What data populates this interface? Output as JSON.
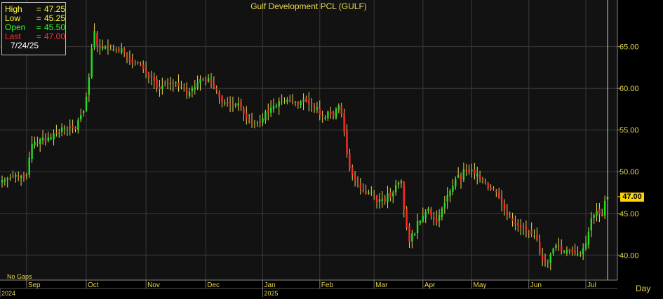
{
  "title": "Gulf Development PCL (GULF)",
  "ohlc_box": {
    "rows": [
      {
        "label": "High",
        "value": "47.25",
        "color": "#ffff3a"
      },
      {
        "label": "Low",
        "value": "45.25",
        "color": "#ffff3a"
      },
      {
        "label": "Open",
        "value": "45.50",
        "color": "#2aff2a"
      },
      {
        "label": "Last",
        "value": "47.00",
        "color": "#ff3030"
      }
    ],
    "date": "7/24/25"
  },
  "no_gaps_label": "No Gaps",
  "period_label": "Day",
  "last_price_tag": "47.00",
  "chart_data": {
    "type": "candlestick",
    "ylim": [
      37.0,
      70.6
    ],
    "y_ticks": [
      {
        "value": 40,
        "label": "40.00"
      },
      {
        "value": 45,
        "label": "45.00"
      },
      {
        "value": 50,
        "label": "50.00"
      },
      {
        "value": 55,
        "label": "55.00"
      },
      {
        "value": 60,
        "label": "60.00"
      },
      {
        "value": 65,
        "label": "65.00"
      }
    ],
    "x_months": [
      {
        "label": "Sep",
        "index": 9
      },
      {
        "label": "Oct",
        "index": 31
      },
      {
        "label": "Nov",
        "index": 53
      },
      {
        "label": "Dec",
        "index": 75
      },
      {
        "label": "Jan",
        "index": 96
      },
      {
        "label": "Feb",
        "index": 117
      },
      {
        "label": "Mar",
        "index": 137
      },
      {
        "label": "Apr",
        "index": 155
      },
      {
        "label": "May",
        "index": 173
      },
      {
        "label": "Jun",
        "index": 194
      },
      {
        "label": "Jul",
        "index": 215
      }
    ],
    "x_years": [
      {
        "label": "2024",
        "index": 0
      },
      {
        "label": "2025",
        "index": 96
      }
    ],
    "closes": [
      49.0,
      49.0,
      49.2,
      49.3,
      49.4,
      49.6,
      49.4,
      49.5,
      49.3,
      49.6,
      51.7,
      53.3,
      53.6,
      53.4,
      53.9,
      54.1,
      53.6,
      54.1,
      54.1,
      54.6,
      54.6,
      54.6,
      55.3,
      55.3,
      55.1,
      55.3,
      55.3,
      55.1,
      56.2,
      56.8,
      57.3,
      59.0,
      61.3,
      64.8,
      66.9,
      65.1,
      64.9,
      65.0,
      65.0,
      64.9,
      64.7,
      64.7,
      64.6,
      64.5,
      64.8,
      64.3,
      63.8,
      63.2,
      63.1,
      62.9,
      63.0,
      62.8,
      62.3,
      61.8,
      61.5,
      61.3,
      60.9,
      60.1,
      59.9,
      60.3,
      60.4,
      60.6,
      60.6,
      60.5,
      60.7,
      60.3,
      60.2,
      60.0,
      59.3,
      59.6,
      60.0,
      60.1,
      60.7,
      61.1,
      61.1,
      60.8,
      61.3,
      60.5,
      60.1,
      59.8,
      58.9,
      58.3,
      58.3,
      58.1,
      58.1,
      58.0,
      58.1,
      58.2,
      57.7,
      57.0,
      56.4,
      56.0,
      55.9,
      55.8,
      55.9,
      55.9,
      56.4,
      57.2,
      57.1,
      57.7,
      57.9,
      57.9,
      58.5,
      58.6,
      58.4,
      58.6,
      58.6,
      58.6,
      58.4,
      58.2,
      58.4,
      58.7,
      58.4,
      58.1,
      58.1,
      57.7,
      57.7,
      56.8,
      56.6,
      56.5,
      57.2,
      56.9,
      56.7,
      57.5,
      58.0,
      56.9,
      54.8,
      52.1,
      50.4,
      49.6,
      49.1,
      48.6,
      48.0,
      47.7,
      47.4,
      47.5,
      47.5,
      47.1,
      46.4,
      46.7,
      46.7,
      46.4,
      47.4,
      46.9,
      47.5,
      48.4,
      48.7,
      48.9,
      45.5,
      43.3,
      41.6,
      42.6,
      42.5,
      44.1,
      44.1,
      44.7,
      45.2,
      45.6,
      44.8,
      44.3,
      43.9,
      44.8,
      45.6,
      46.3,
      47.2,
      47.7,
      48.3,
      49.1,
      49.6,
      48.8,
      50.3,
      50.1,
      50.0,
      50.2,
      49.7,
      49.8,
      49.2,
      49.0,
      48.7,
      48.1,
      47.9,
      47.9,
      47.6,
      46.9,
      46.2,
      45.4,
      44.8,
      44.6,
      44.1,
      43.7,
      43.5,
      43.3,
      43.3,
      43.1,
      42.7,
      42.5,
      42.3,
      41.8,
      40.2,
      39.5,
      39.2,
      39.2,
      40.1,
      40.8,
      41.2,
      41.1,
      40.5,
      40.4,
      40.6,
      40.4,
      40.4,
      40.2,
      40.1,
      40.3,
      40.8,
      41.4,
      42.8,
      44.4,
      44.8,
      45.3,
      44.9,
      44.8,
      46.5,
      47.0
    ]
  }
}
